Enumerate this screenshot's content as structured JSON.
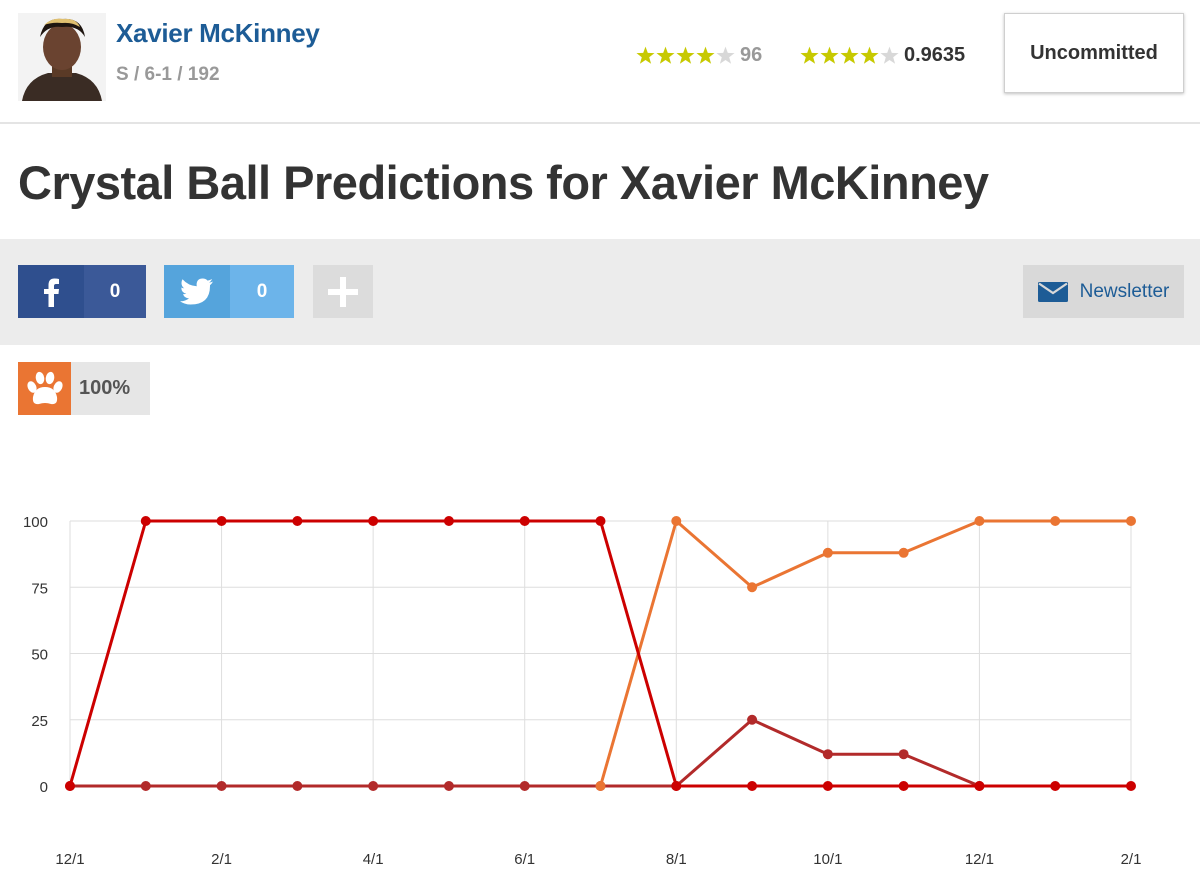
{
  "player": {
    "name": "Xavier McKinney",
    "meta": "S / 6-1 / 192",
    "rating1": {
      "stars": 4,
      "max_stars": 5,
      "value": "96"
    },
    "rating2": {
      "stars": 4,
      "max_stars": 5,
      "value": "0.9635"
    },
    "status": "Uncommitted"
  },
  "page": {
    "title": "Crystal Ball Predictions for Xavier McKinney"
  },
  "share": {
    "facebook_count": "0",
    "twitter_count": "0",
    "newsletter_label": "Newsletter"
  },
  "team": {
    "percent": "100%"
  },
  "colors": {
    "link_blue": "#1d5c96",
    "star_gold": "#c7c900",
    "star_empty": "#d8d8d8",
    "facebook": "#3b5998",
    "twitter": "#6cb4ea",
    "clemson_orange": "#ea7533",
    "series_red": "#cc0000",
    "series_dark_red": "#b22a2a"
  },
  "chart_data": {
    "type": "line",
    "title": "",
    "xlabel": "",
    "ylabel": "",
    "ylim": [
      0,
      100
    ],
    "yticks": [
      0,
      25,
      50,
      75,
      100
    ],
    "grid": true,
    "x": [
      "12/1",
      "1/1",
      "2/1",
      "3/1",
      "4/1",
      "5/1",
      "6/1",
      "7/1",
      "8/1",
      "9/1",
      "10/1",
      "11/1",
      "12/1",
      "1/1",
      "2/1"
    ],
    "xtick_labels": [
      "12/1",
      "",
      "2/1",
      "",
      "4/1",
      "",
      "6/1",
      "",
      "8/1",
      "",
      "10/1",
      "",
      "12/1",
      "",
      "2/1"
    ],
    "series": [
      {
        "color": "#cc0000",
        "values": [
          0,
          100,
          100,
          100,
          100,
          100,
          100,
          100,
          0,
          0,
          0,
          0,
          0,
          0,
          0
        ]
      },
      {
        "color": "#ea7533",
        "values": [
          null,
          null,
          null,
          null,
          null,
          null,
          null,
          0,
          100,
          75,
          88,
          88,
          100,
          100,
          100
        ]
      },
      {
        "color": "#b22a2a",
        "values": [
          0,
          0,
          0,
          0,
          0,
          0,
          0,
          0,
          0,
          25,
          12,
          12,
          0,
          null,
          null
        ]
      }
    ]
  }
}
